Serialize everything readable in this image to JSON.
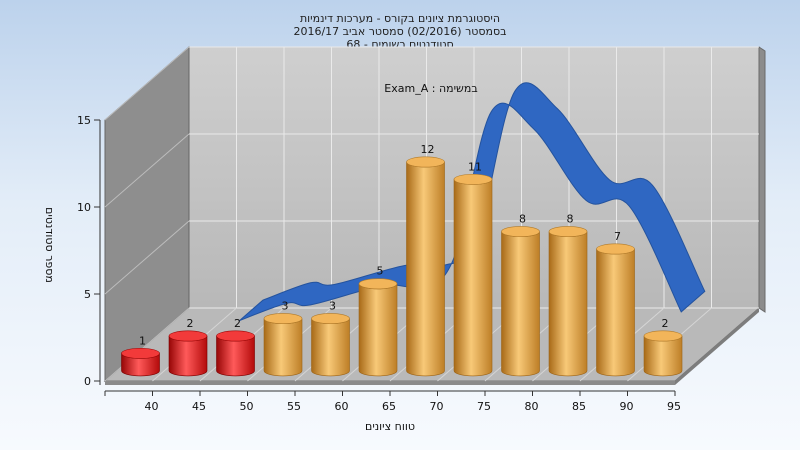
{
  "chart_data": {
    "type": "bar",
    "title": [
      "היסטוגרמת ציונים בקורס - מערכות דינמיות",
      "בסמסטר  (02/2016)  סמסטר אביב 2016/17",
      "סטודנטים רשומים - 68"
    ],
    "subtitle": "Exam_A : במשימה",
    "xlabel": "טווח ציונים",
    "ylabel": "מספר סטודנטים",
    "x_tick_labels": [
      "40",
      "45",
      "50",
      "55",
      "60",
      "65",
      "70",
      "75",
      "80",
      "85",
      "90",
      "95"
    ],
    "y_ticks": [
      0,
      5,
      10,
      15
    ],
    "ylim": [
      0,
      15
    ],
    "grid": true,
    "bars": [
      {
        "value": 1,
        "color": "#e31414"
      },
      {
        "value": 2,
        "color": "#e31414"
      },
      {
        "value": 2,
        "color": "#e31414"
      },
      {
        "value": 3,
        "color": "#e8a23c"
      },
      {
        "value": 3,
        "color": "#e8a23c"
      },
      {
        "value": 5,
        "color": "#e8a23c"
      },
      {
        "value": 12,
        "color": "#e8a23c"
      },
      {
        "value": 11,
        "color": "#e8a23c"
      },
      {
        "value": 8,
        "color": "#e8a23c"
      },
      {
        "value": 8,
        "color": "#e8a23c"
      },
      {
        "value": 7,
        "color": "#e8a23c"
      },
      {
        "value": 2,
        "color": "#e8a23c"
      }
    ],
    "trend_curve": [
      {
        "bin": 1.5,
        "value": 1.5
      },
      {
        "bin": 2.5,
        "value": 2.5
      },
      {
        "bin": 3.0,
        "value": 2.4
      },
      {
        "bin": 4.5,
        "value": 3.5
      },
      {
        "bin": 5.3,
        "value": 3.5
      },
      {
        "bin": 6.0,
        "value": 5.0
      },
      {
        "bin": 6.8,
        "value": 13.5
      },
      {
        "bin": 7.7,
        "value": 12.5
      },
      {
        "bin": 8.8,
        "value": 8.4
      },
      {
        "bin": 9.7,
        "value": 8.1
      },
      {
        "bin": 10.8,
        "value": 2.0
      }
    ],
    "colors": {
      "low_bars": "#e31414",
      "bars": "#e8a23c",
      "trend": "#2f67c2",
      "back_wall": "#c4c4c4",
      "side_wall": "#8e8e8e",
      "floor": "#b9b9b9"
    }
  }
}
